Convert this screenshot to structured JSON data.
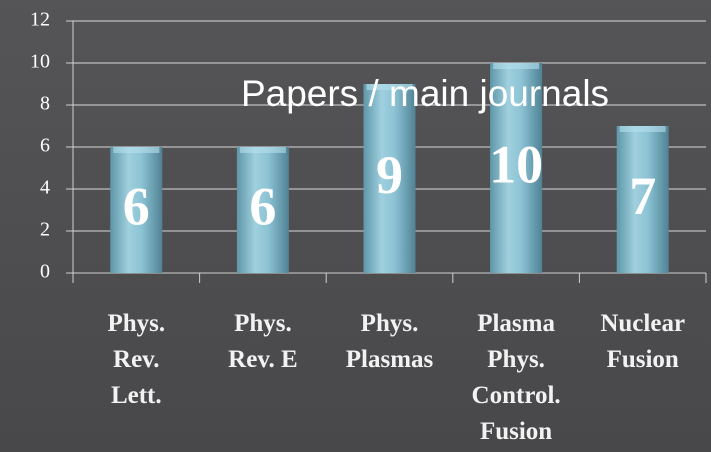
{
  "chart_data": {
    "type": "bar",
    "title": "Papers / main journals",
    "categories": [
      [
        "Phys.",
        "Rev.",
        "Lett."
      ],
      [
        "Phys.",
        "Rev. E"
      ],
      [
        "Phys.",
        "Plasmas"
      ],
      [
        "Plasma",
        "Phys.",
        "Control.",
        "Fusion"
      ],
      [
        "Nuclear",
        "Fusion"
      ]
    ],
    "values": [
      6,
      6,
      9,
      10,
      7
    ],
    "color": "#8cc3d4",
    "ylim": [
      0,
      12
    ],
    "yticks": [
      0,
      2,
      4,
      6,
      8,
      10,
      12
    ],
    "grid": true
  }
}
